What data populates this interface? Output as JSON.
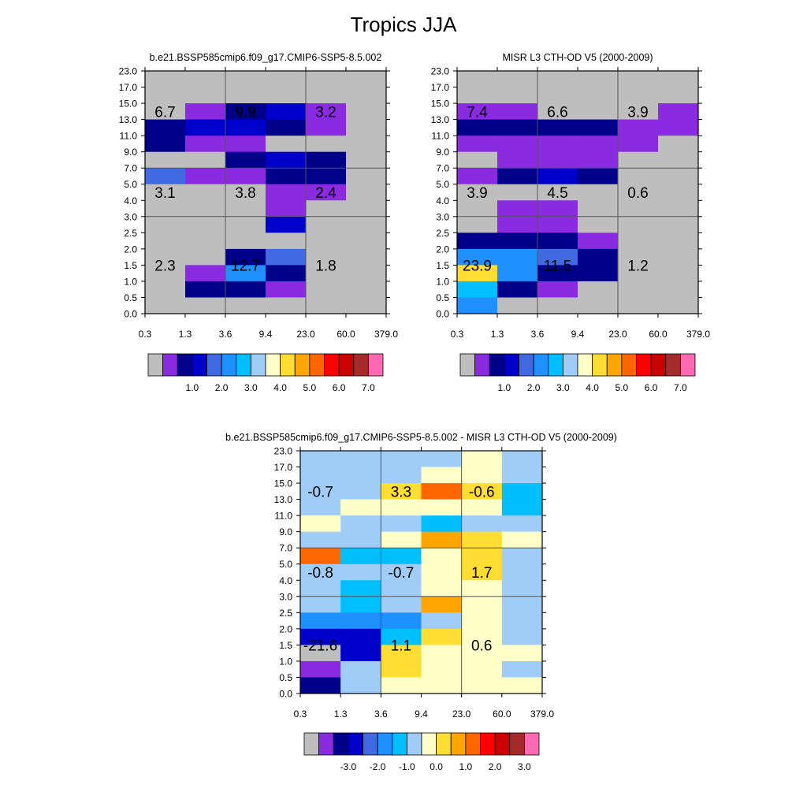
{
  "title": "Tropics JJA",
  "colors": {
    "palette": [
      "#bebebe",
      "#8a2be2",
      "#00008b",
      "#0000cd",
      "#4169e1",
      "#1e90ff",
      "#00bfff",
      "#a0cdf8",
      "#ffffc8",
      "#ffdd33",
      "#ffa500",
      "#ff6600",
      "#ff0000",
      "#cd0000",
      "#a52a2a",
      "#ff69b4"
    ],
    "grid": "#555555"
  },
  "x_ticks": [
    "0.3",
    "1.3",
    "3.6",
    "9.4",
    "23.0",
    "60.0",
    "379.0"
  ],
  "y_ticks": [
    "0.0",
    "0.5",
    "1.0",
    "1.5",
    "2.0",
    "2.5",
    "3.0",
    "4.0",
    "5.0",
    "7.0",
    "9.0",
    "11.0",
    "13.0",
    "15.0",
    "17.0",
    "23.0"
  ],
  "chart_data": [
    {
      "type": "heatmap",
      "title": "b.e21.BSSP585cmip6.f09_g17.CMIP6-SSP5-8.5.002",
      "note": "cells[row][col]: row 0 = top (17.0-23.0), col 0 = 0.3-1.3; values are palette color indices",
      "cells": [
        [
          0,
          0,
          0,
          0,
          0,
          0
        ],
        [
          0,
          0,
          0,
          0,
          0,
          0
        ],
        [
          0,
          1,
          2,
          3,
          1,
          0
        ],
        [
          2,
          3,
          3,
          2,
          1,
          0
        ],
        [
          2,
          1,
          1,
          0,
          0,
          0
        ],
        [
          0,
          0,
          2,
          3,
          2,
          0
        ],
        [
          4,
          1,
          1,
          2,
          2,
          0
        ],
        [
          0,
          0,
          0,
          1,
          1,
          0
        ],
        [
          0,
          0,
          0,
          1,
          0,
          0
        ],
        [
          0,
          0,
          0,
          3,
          0,
          0
        ],
        [
          0,
          0,
          0,
          0,
          0,
          0
        ],
        [
          0,
          0,
          2,
          4,
          0,
          0
        ],
        [
          0,
          1,
          5,
          2,
          0,
          0
        ],
        [
          0,
          2,
          2,
          1,
          0,
          0
        ],
        [
          0,
          0,
          0,
          0,
          0,
          0
        ]
      ],
      "annotations": [
        {
          "text": "6.7",
          "col": 0.5,
          "row": 2.5
        },
        {
          "text": "9.9",
          "col": 2.5,
          "row": 2.5
        },
        {
          "text": "3.2",
          "col": 4.5,
          "row": 2.5
        },
        {
          "text": "3.1",
          "col": 0.5,
          "row": 7.5
        },
        {
          "text": "3.8",
          "col": 2.5,
          "row": 7.5
        },
        {
          "text": "2.4",
          "col": 4.5,
          "row": 7.5
        },
        {
          "text": "2.3",
          "col": 0.5,
          "row": 12
        },
        {
          "text": "12.7",
          "col": 2.5,
          "row": 12
        },
        {
          "text": "1.8",
          "col": 4.5,
          "row": 12
        }
      ],
      "colorbar_labels": [
        "1.0",
        "2.0",
        "3.0",
        "4.0",
        "5.0",
        "6.0",
        "7.0"
      ]
    },
    {
      "type": "heatmap",
      "title": "MISR L3 CTH-OD V5 (2000-2009)",
      "note": "cells[row][col]: row 0 = top (17.0-23.0), col 0 = 0.3-1.3; values are palette color indices",
      "cells": [
        [
          0,
          0,
          0,
          0,
          0,
          0
        ],
        [
          0,
          0,
          0,
          0,
          0,
          0
        ],
        [
          1,
          1,
          0,
          0,
          0,
          1
        ],
        [
          2,
          2,
          2,
          2,
          1,
          1
        ],
        [
          1,
          1,
          1,
          1,
          1,
          0
        ],
        [
          0,
          1,
          1,
          1,
          0,
          0
        ],
        [
          1,
          2,
          3,
          2,
          0,
          0
        ],
        [
          0,
          0,
          0,
          0,
          0,
          0
        ],
        [
          0,
          1,
          1,
          0,
          0,
          0
        ],
        [
          0,
          1,
          1,
          0,
          0,
          0
        ],
        [
          2,
          2,
          2,
          1,
          0,
          0
        ],
        [
          5,
          5,
          4,
          2,
          0,
          0
        ],
        [
          9,
          5,
          2,
          2,
          0,
          0
        ],
        [
          6,
          2,
          1,
          0,
          0,
          0
        ],
        [
          5,
          0,
          0,
          0,
          0,
          0
        ]
      ],
      "annotations": [
        {
          "text": "7.4",
          "col": 0.5,
          "row": 2.5
        },
        {
          "text": "6.6",
          "col": 2.5,
          "row": 2.5
        },
        {
          "text": "3.9",
          "col": 4.5,
          "row": 2.5
        },
        {
          "text": "3.9",
          "col": 0.5,
          "row": 7.5
        },
        {
          "text": "4.5",
          "col": 2.5,
          "row": 7.5
        },
        {
          "text": "0.6",
          "col": 4.5,
          "row": 7.5
        },
        {
          "text": "23.9",
          "col": 0.5,
          "row": 12
        },
        {
          "text": "11.5",
          "col": 2.5,
          "row": 12
        },
        {
          "text": "1.2",
          "col": 4.5,
          "row": 12
        }
      ],
      "colorbar_labels": [
        "1.0",
        "2.0",
        "3.0",
        "4.0",
        "5.0",
        "6.0",
        "7.0"
      ]
    },
    {
      "type": "heatmap",
      "title": "b.e21.BSSP585cmip6.f09_g17.CMIP6-SSP5-8.5.002 - MISR L3 CTH-OD V5 (2000-2009)",
      "note": "cells[row][col]: row 0 = top (17.0-23.0), col 0 = 0.3-1.3; values are palette color indices",
      "cells": [
        [
          7,
          7,
          7,
          7,
          8,
          7
        ],
        [
          7,
          7,
          7,
          8,
          8,
          7
        ],
        [
          7,
          7,
          9,
          11,
          9,
          6
        ],
        [
          7,
          8,
          8,
          8,
          8,
          6
        ],
        [
          8,
          7,
          7,
          6,
          7,
          7
        ],
        [
          7,
          7,
          8,
          10,
          9,
          8
        ],
        [
          11,
          6,
          6,
          8,
          9,
          7
        ],
        [
          7,
          7,
          7,
          8,
          9,
          7
        ],
        [
          7,
          6,
          7,
          8,
          8,
          7
        ],
        [
          7,
          6,
          7,
          10,
          8,
          7
        ],
        [
          5,
          5,
          5,
          7,
          8,
          7
        ],
        [
          3,
          3,
          6,
          9,
          8,
          7
        ],
        [
          0,
          3,
          9,
          8,
          8,
          8
        ],
        [
          1,
          7,
          9,
          8,
          8,
          7
        ],
        [
          2,
          7,
          8,
          8,
          8,
          8
        ]
      ],
      "annotations": [
        {
          "text": "-0.7",
          "col": 0.5,
          "row": 2.5
        },
        {
          "text": "3.3",
          "col": 2.5,
          "row": 2.5
        },
        {
          "text": "-0.6",
          "col": 4.5,
          "row": 2.5
        },
        {
          "text": "-0.8",
          "col": 0.5,
          "row": 7.5
        },
        {
          "text": "-0.7",
          "col": 2.5,
          "row": 7.5
        },
        {
          "text": "1.7",
          "col": 4.5,
          "row": 7.5
        },
        {
          "text": "-21.6",
          "col": 0.5,
          "row": 12
        },
        {
          "text": "1.1",
          "col": 2.5,
          "row": 12
        },
        {
          "text": "0.6",
          "col": 4.5,
          "row": 12
        }
      ],
      "colorbar_labels": [
        "-3.0",
        "-2.0",
        "-1.0",
        "0.0",
        "1.0",
        "2.0",
        "3.0"
      ]
    }
  ]
}
